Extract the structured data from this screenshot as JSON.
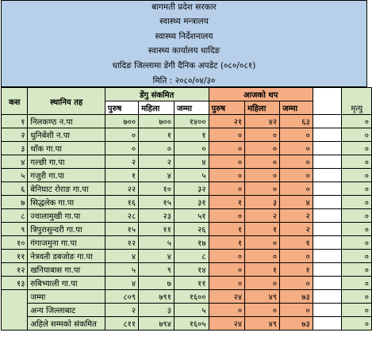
{
  "header": {
    "lines": [
      "बागमती प्रदेश सरकार",
      "स्वास्थ्य मन्त्रालय",
      "स्वास्थ्य निर्देशनालय",
      "स्वास्थ्य कार्यालय धादिङ",
      "धादिङ जिल्लामा डेंगी दैनिक अपडेट (०८०/०८१)",
      "मिति : २०८०/०४/३०"
    ]
  },
  "columns": {
    "case": "कस",
    "local_level": "स्थानिय तह",
    "dengue_infected": "डेंगु संकमित",
    "today_added": "आजको थप",
    "death": "मृत्यु",
    "male": "पुरुष",
    "female": "महिला",
    "total": "जम्मा"
  },
  "rows": [
    {
      "sn": "१",
      "name": "निलकण्ठ न.पा",
      "m": "७००",
      "f": "७००",
      "t": "१४००",
      "tm": "२१",
      "tf": "४२",
      "tt": "६३",
      "d": "०"
    },
    {
      "sn": "२",
      "name": "धुनिबेंशी न.पा",
      "m": "०",
      "f": "१",
      "t": "१",
      "tm": "०",
      "tf": "०",
      "tt": "०",
      "d": "०"
    },
    {
      "sn": "३",
      "name": "थाँक गा.पा",
      "m": "०",
      "f": "०",
      "t": "०",
      "tm": "०",
      "tf": "०",
      "tt": "०",
      "d": "०"
    },
    {
      "sn": "४",
      "name": "गल्छी गा.पा",
      "m": "२",
      "f": "२",
      "t": "४",
      "tm": "०",
      "tf": "०",
      "tt": "०",
      "d": "०"
    },
    {
      "sn": "५",
      "name": "गजुरी गा.पा",
      "m": "१",
      "f": "४",
      "t": "५",
      "tm": "०",
      "tf": "०",
      "tt": "०",
      "d": "०"
    },
    {
      "sn": "६",
      "name": "बेनिघाट रोराङ गा.पा",
      "m": "२२",
      "f": "१०",
      "t": "३२",
      "tm": "०",
      "tf": "०",
      "tt": "०",
      "d": "०"
    },
    {
      "sn": "७",
      "name": "सिद्धलेक गा.पा",
      "m": "१६",
      "f": "१५",
      "t": "३१",
      "tm": "१",
      "tf": "३",
      "tt": "४",
      "d": "०"
    },
    {
      "sn": "८",
      "name": "ज्वालामुखी गा.पा",
      "m": "२८",
      "f": "२३",
      "t": "५१",
      "tm": "०",
      "tf": "२",
      "tt": "२",
      "d": "०"
    },
    {
      "sn": "९",
      "name": "त्रिपुरासुन्दरी गा.पा",
      "m": "१५",
      "f": "११",
      "t": "२६",
      "tm": "१",
      "tf": "१",
      "tt": "२",
      "d": "०"
    },
    {
      "sn": "१०",
      "name": "गंगाजमुना गा.पा",
      "m": "१२",
      "f": "५",
      "t": "१७",
      "tm": "१",
      "tf": "०",
      "tt": "१",
      "d": "०"
    },
    {
      "sn": "११",
      "name": "नेत्रवती डबजोङ गा.पा",
      "m": "४",
      "f": "४",
      "t": "८",
      "tm": "०",
      "tf": "०",
      "tt": "०",
      "d": "०"
    },
    {
      "sn": "१२",
      "name": "खनियाबास गा.पा",
      "m": "५",
      "f": "९",
      "t": "१४",
      "tm": "०",
      "tf": "१",
      "tt": "१",
      "d": "०"
    },
    {
      "sn": "१३",
      "name": "रुबिभ्याली गा.पा",
      "m": "४",
      "f": "७",
      "t": "११",
      "tm": "०",
      "tf": "०",
      "tt": "०",
      "d": "०"
    }
  ],
  "totals": {
    "name": "जम्मा",
    "m": "८०९",
    "f": "७९१",
    "t": "१६००",
    "tm": "२४",
    "tf": "४९",
    "tt": "७३",
    "d": "०"
  },
  "other_district": {
    "name": "अन्य जिल्लाबाट",
    "m": "२",
    "f": "३",
    "t": "५",
    "tm": "०",
    "tf": "०",
    "tt": "०",
    "d": "०"
  },
  "cumulative": {
    "name": "अहिले सम्मको संकमित",
    "m": "८११",
    "f": "७९४",
    "t": "१६०५",
    "tm": "२४",
    "tf": "४९",
    "tt": "७३",
    "d": "०"
  }
}
